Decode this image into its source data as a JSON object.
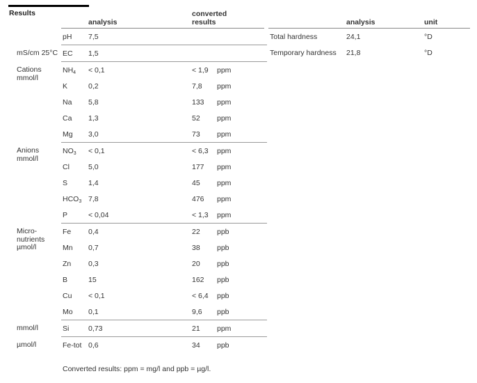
{
  "title": "Results",
  "left_table": {
    "headers": {
      "analysis": "analysis",
      "converted": "converted\nresults"
    },
    "groups": [
      {
        "label": "",
        "rows": [
          {
            "symbol": "pH",
            "sub": "",
            "analysis": "7,5",
            "converted": "",
            "unit": ""
          }
        ]
      },
      {
        "label": "mS/cm 25°C",
        "rows": [
          {
            "symbol": "EC",
            "sub": "",
            "analysis": "1,5",
            "converted": "",
            "unit": ""
          }
        ]
      },
      {
        "label": "Cations\nmmol/l",
        "rows": [
          {
            "symbol": "NH",
            "sub": "4",
            "analysis": "< 0,1",
            "converted": "< 1,9",
            "unit": "ppm"
          },
          {
            "symbol": "K",
            "sub": "",
            "analysis": "0,2",
            "converted": "7,8",
            "unit": "ppm"
          },
          {
            "symbol": "Na",
            "sub": "",
            "analysis": "5,8",
            "converted": "133",
            "unit": "ppm"
          },
          {
            "symbol": "Ca",
            "sub": "",
            "analysis": "1,3",
            "converted": "52",
            "unit": "ppm"
          },
          {
            "symbol": "Mg",
            "sub": "",
            "analysis": "3,0",
            "converted": "73",
            "unit": "ppm"
          }
        ]
      },
      {
        "label": "Anions\nmmol/l",
        "rows": [
          {
            "symbol": "NO",
            "sub": "3",
            "analysis": "< 0,1",
            "converted": "< 6,3",
            "unit": "ppm"
          },
          {
            "symbol": "Cl",
            "sub": "",
            "analysis": "5,0",
            "converted": "177",
            "unit": "ppm"
          },
          {
            "symbol": "S",
            "sub": "",
            "analysis": "1,4",
            "converted": "45",
            "unit": "ppm"
          },
          {
            "symbol": "HCO",
            "sub": "3",
            "analysis": "7,8",
            "converted": "476",
            "unit": "ppm"
          },
          {
            "symbol": "P",
            "sub": "",
            "analysis": "< 0,04",
            "converted": "< 1,3",
            "unit": "ppm"
          }
        ]
      },
      {
        "label": "Micro-\nnutrients\nµmol/l",
        "rows": [
          {
            "symbol": "Fe",
            "sub": "",
            "analysis": "0,4",
            "converted": "22",
            "unit": "ppb"
          },
          {
            "symbol": "Mn",
            "sub": "",
            "analysis": "0,7",
            "converted": "38",
            "unit": "ppb"
          },
          {
            "symbol": "Zn",
            "sub": "",
            "analysis": "0,3",
            "converted": "20",
            "unit": "ppb"
          },
          {
            "symbol": "B",
            "sub": "",
            "analysis": "15",
            "converted": "162",
            "unit": "ppb"
          },
          {
            "symbol": "Cu",
            "sub": "",
            "analysis": "< 0,1",
            "converted": "< 6,4",
            "unit": "ppb"
          },
          {
            "symbol": "Mo",
            "sub": "",
            "analysis": "0,1",
            "converted": "9,6",
            "unit": "ppb"
          }
        ]
      },
      {
        "label": "mmol/l",
        "rows": [
          {
            "symbol": "Si",
            "sub": "",
            "analysis": "0,73",
            "converted": "21",
            "unit": "ppm"
          }
        ]
      },
      {
        "label": "µmol/l",
        "rows": [
          {
            "symbol": "Fe-tot",
            "sub": "",
            "analysis": "0,6",
            "converted": "34",
            "unit": "ppb"
          }
        ]
      }
    ]
  },
  "right_table": {
    "headers": {
      "analysis": "analysis",
      "unit": "unit"
    },
    "rows": [
      {
        "name": "Total hardness",
        "analysis": "24,1",
        "unit": "°D"
      },
      {
        "name": "Temporary hardness",
        "analysis": "21,8",
        "unit": "°D"
      }
    ]
  },
  "footer": "Converted results: ppm = mg/l and ppb = µg/l."
}
